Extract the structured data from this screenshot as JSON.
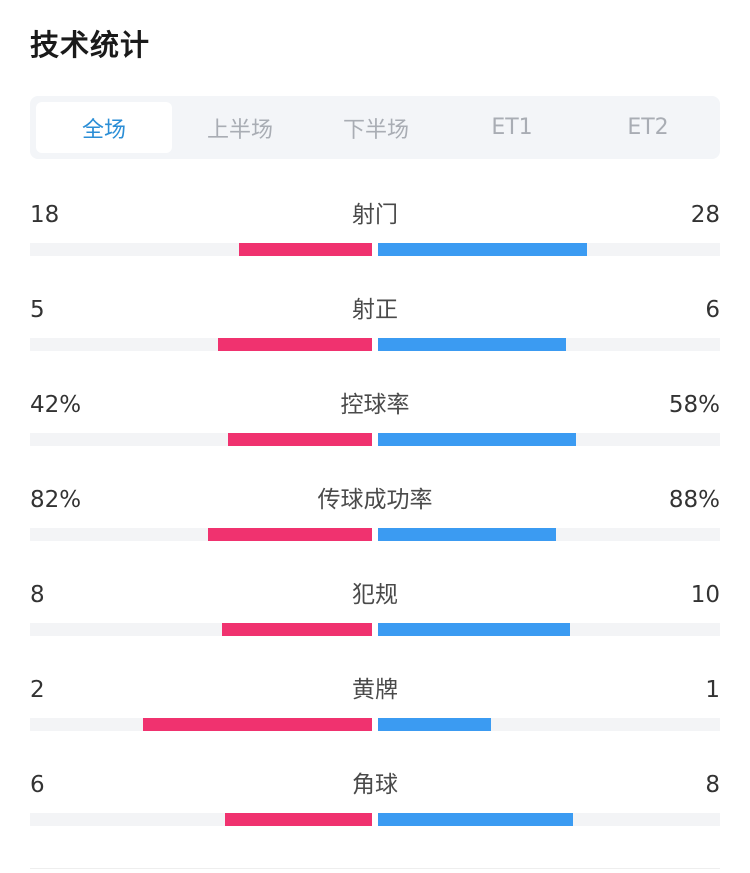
{
  "title": "技术统计",
  "colors": {
    "home": "#f0326f",
    "away": "#3b9bf2",
    "tab_active": "#2b8ed6"
  },
  "tabs": [
    {
      "label": "全场",
      "active": true
    },
    {
      "label": "上半场",
      "active": false
    },
    {
      "label": "下半场",
      "active": false
    },
    {
      "label": "ET1",
      "active": false
    },
    {
      "label": "ET2",
      "active": false
    }
  ],
  "stats": [
    {
      "label": "射门",
      "home": "18",
      "away": "28",
      "home_bar": 0.39,
      "away_bar": 0.61
    },
    {
      "label": "射正",
      "home": "5",
      "away": "6",
      "home_bar": 0.45,
      "away_bar": 0.55
    },
    {
      "label": "控球率",
      "home": "42%",
      "away": "58%",
      "home_bar": 0.42,
      "away_bar": 0.58
    },
    {
      "label": "传球成功率",
      "home": "82%",
      "away": "88%",
      "home_bar": 0.48,
      "away_bar": 0.52
    },
    {
      "label": "犯规",
      "home": "8",
      "away": "10",
      "home_bar": 0.44,
      "away_bar": 0.56
    },
    {
      "label": "黄牌",
      "home": "2",
      "away": "1",
      "home_bar": 0.67,
      "away_bar": 0.33
    },
    {
      "label": "角球",
      "home": "6",
      "away": "8",
      "home_bar": 0.43,
      "away_bar": 0.57
    }
  ]
}
